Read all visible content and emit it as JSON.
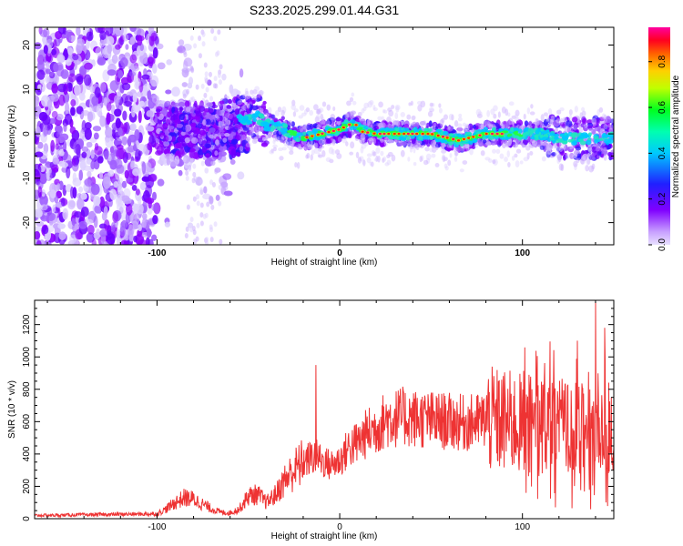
{
  "figure_title": "S233.2025.299.01.44.G31",
  "chart_data": [
    {
      "type": "heatmap",
      "title": "S233.2025.299.01.44.G31",
      "xlabel": "Height of straight line (km)",
      "ylabel": "Frequency (Hz)",
      "xlim": [
        -167,
        150
      ],
      "ylim": [
        -25,
        24
      ],
      "xticks": [
        -100,
        0,
        100
      ],
      "xtick_labels": [
        "-100",
        "0",
        "100"
      ],
      "yticks": [
        -20,
        -10,
        0,
        10,
        20
      ],
      "ytick_labels": [
        "-20",
        "-10",
        "0",
        "10",
        "20"
      ],
      "colorbar": {
        "label": "Normalized spectral amplitude",
        "range": [
          0,
          0.95
        ],
        "ticks": [
          0.0,
          0.2,
          0.4,
          0.6,
          0.8
        ],
        "tick_labels": [
          "0.0",
          "0.2",
          "0.4",
          "0.6",
          "0.8"
        ],
        "colormap": [
          "#e8e0ff",
          "#9000ff",
          "#2000ff",
          "#00c8ff",
          "#00ff40",
          "#ffff00",
          "#ff8000",
          "#ff0000",
          "#ff00a0"
        ]
      },
      "ridge": {
        "x": [
          -70,
          -60,
          -50,
          -45,
          -40,
          -30,
          -20,
          -10,
          0,
          5,
          8,
          12,
          20,
          30,
          40,
          50,
          60,
          65,
          70,
          80,
          90,
          100,
          110,
          120,
          130,
          140,
          150
        ],
        "y": [
          2,
          3,
          3.5,
          4,
          2,
          1,
          -1,
          0,
          1,
          2,
          2.5,
          0.5,
          0,
          0,
          0,
          0,
          -1,
          -1.5,
          -1,
          0,
          0,
          0,
          0,
          -1,
          -1,
          -1,
          -1
        ]
      }
    },
    {
      "type": "line",
      "xlabel": "Height of straight line (km)",
      "ylabel": "SNR (10 * v/v)",
      "xlim": [
        -167,
        150
      ],
      "ylim": [
        0,
        1350
      ],
      "xticks": [
        -100,
        0,
        100
      ],
      "xtick_labels": [
        "-100",
        "0",
        "100"
      ],
      "yticks": [
        0,
        200,
        400,
        600,
        800,
        1000,
        1200
      ],
      "ytick_labels": [
        "0",
        "200",
        "400",
        "600",
        "800",
        "1000",
        "1200"
      ],
      "color": "#ee3333",
      "envelope": {
        "x": [
          -167,
          -100,
          -95,
          -90,
          -85,
          -80,
          -75,
          -70,
          -65,
          -60,
          -55,
          -50,
          -45,
          -40,
          -35,
          -30,
          -25,
          -20,
          -15,
          -12,
          -10,
          -5,
          0,
          5,
          10,
          15,
          20,
          25,
          30,
          35,
          40,
          50,
          60,
          70,
          80,
          90,
          100,
          110,
          120,
          130,
          140,
          150
        ],
        "y": [
          20,
          30,
          60,
          100,
          130,
          120,
          90,
          60,
          40,
          35,
          60,
          140,
          150,
          100,
          150,
          240,
          300,
          350,
          380,
          380,
          360,
          330,
          360,
          440,
          470,
          530,
          560,
          610,
          620,
          630,
          620,
          610,
          600,
          590,
          610,
          600,
          580,
          570,
          560,
          550,
          540,
          480
        ]
      },
      "spikes": [
        {
          "x": -13,
          "y": 950
        },
        {
          "x": 140,
          "y": 1340
        },
        {
          "x": 145,
          "y": 1180
        },
        {
          "x": 130,
          "y": 1100
        }
      ]
    }
  ]
}
